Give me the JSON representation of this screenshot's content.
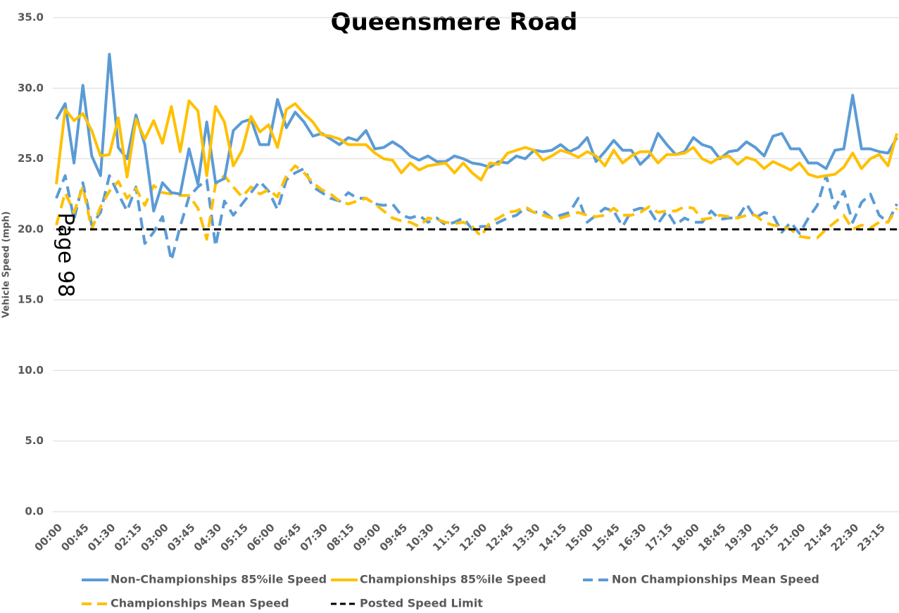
{
  "chart_data": {
    "type": "line",
    "title": "Queensmere Road",
    "y_label": "Vehicle Speed (mph)",
    "annotation": "Page 98",
    "categories": [
      "00:00",
      null,
      null,
      "00:45",
      null,
      null,
      "01:30",
      null,
      null,
      "02:15",
      null,
      null,
      "03:00",
      null,
      null,
      "03:45",
      null,
      null,
      "04:30",
      null,
      null,
      "05:15",
      null,
      null,
      "06:00",
      null,
      null,
      "06:45",
      null,
      null,
      "07:30",
      null,
      null,
      "08:15",
      null,
      null,
      "09:00",
      null,
      null,
      "09:45",
      null,
      null,
      "10:30",
      null,
      null,
      "11:15",
      null,
      null,
      "12:00",
      null,
      null,
      "12:45",
      null,
      null,
      "13:30",
      null,
      null,
      "14:15",
      null,
      null,
      "15:00",
      null,
      null,
      "15:45",
      null,
      null,
      "16:30",
      null,
      null,
      "17:15",
      null,
      null,
      "18:00",
      null,
      null,
      "18:45",
      null,
      null,
      "19:30",
      null,
      null,
      "20:15",
      null,
      null,
      "21:00",
      null,
      null,
      "21:45",
      null,
      null,
      "22:30",
      null,
      null,
      "23:15",
      null,
      null
    ],
    "series": [
      {
        "name": "Non-Championships 85%ile Speed",
        "color": "#5b9bd5",
        "dashed": false,
        "values": [
          27.8,
          28.9,
          24.7,
          30.2,
          25.2,
          23.8,
          32.4,
          25.8,
          25.0,
          28.1,
          26.0,
          21.3,
          23.3,
          22.6,
          22.5,
          25.7,
          23.2,
          27.6,
          23.3,
          23.6,
          27.0,
          27.6,
          27.8,
          26.0,
          26.0,
          29.2,
          27.2,
          28.3,
          27.6,
          26.6,
          26.8,
          26.4,
          26.0,
          26.5,
          26.3,
          27.0,
          25.7,
          25.8,
          26.2,
          25.8,
          25.2,
          24.9,
          25.2,
          24.8,
          24.8,
          25.2,
          25.0,
          24.7,
          24.6,
          24.4,
          24.8,
          24.7,
          25.2,
          25.0,
          25.6,
          25.5,
          25.6,
          26.0,
          25.5,
          25.8,
          26.5,
          24.8,
          25.5,
          26.3,
          25.6,
          25.6,
          24.6,
          25.2,
          26.8,
          26.0,
          25.3,
          25.5,
          26.5,
          26.0,
          25.8,
          25.0,
          25.5,
          25.6,
          26.2,
          25.8,
          25.2,
          26.6,
          26.8,
          25.7,
          25.7,
          24.7,
          24.7,
          24.3,
          25.6,
          25.7,
          29.5,
          25.7,
          25.7,
          25.5,
          25.4,
          26.5
        ]
      },
      {
        "name": "Championships 85%ile Speed",
        "color": "#ffc000",
        "dashed": false,
        "values": [
          23.2,
          28.5,
          27.7,
          28.2,
          27.0,
          25.2,
          25.3,
          27.9,
          23.7,
          27.8,
          26.4,
          27.7,
          26.1,
          28.7,
          25.5,
          29.1,
          28.4,
          23.8,
          28.7,
          27.6,
          24.5,
          25.6,
          28.0,
          26.9,
          27.4,
          25.8,
          28.5,
          28.9,
          28.2,
          27.6,
          26.7,
          26.6,
          26.4,
          26.0,
          26.0,
          26.0,
          25.4,
          25.0,
          24.9,
          24.0,
          24.7,
          24.2,
          24.5,
          24.6,
          24.7,
          24.0,
          24.7,
          24.0,
          23.5,
          24.7,
          24.6,
          25.4,
          25.6,
          25.8,
          25.6,
          24.9,
          25.2,
          25.6,
          25.4,
          25.1,
          25.5,
          25.2,
          24.5,
          25.6,
          24.7,
          25.2,
          25.5,
          25.5,
          24.7,
          25.3,
          25.3,
          25.4,
          25.8,
          25.0,
          24.7,
          25.1,
          25.2,
          24.6,
          25.1,
          24.9,
          24.3,
          24.8,
          24.5,
          24.2,
          24.7,
          23.9,
          23.7,
          23.8,
          23.9,
          24.4,
          25.4,
          24.3,
          25.0,
          25.3,
          24.5,
          26.8
        ]
      },
      {
        "name": "Non Championships Mean Speed",
        "color": "#5b9bd5",
        "dashed": true,
        "values": [
          22.2,
          23.8,
          20.7,
          23.3,
          20.3,
          21.2,
          23.8,
          22.5,
          21.3,
          23.0,
          19.0,
          19.8,
          20.9,
          17.8,
          20.2,
          22.3,
          23.0,
          23.5,
          18.8,
          22.0,
          21.0,
          21.8,
          22.6,
          23.4,
          22.7,
          21.4,
          23.5,
          24.0,
          24.3,
          23.0,
          22.6,
          22.2,
          22.0,
          22.6,
          22.2,
          22.2,
          21.8,
          21.7,
          21.8,
          21.0,
          20.8,
          21.0,
          20.5,
          20.8,
          20.3,
          20.5,
          20.8,
          20.0,
          20.2,
          20.2,
          20.5,
          20.8,
          21.0,
          21.5,
          21.2,
          21.3,
          20.8,
          21.0,
          21.2,
          22.2,
          20.5,
          21.0,
          21.5,
          21.3,
          20.2,
          21.3,
          21.5,
          21.4,
          20.4,
          21.3,
          20.3,
          20.8,
          20.5,
          20.5,
          21.3,
          20.7,
          20.8,
          20.8,
          21.8,
          20.8,
          21.2,
          21.0,
          19.8,
          20.5,
          19.7,
          20.8,
          21.7,
          23.8,
          21.5,
          22.7,
          20.5,
          21.9,
          22.5,
          21.0,
          20.5,
          21.8
        ]
      },
      {
        "name": "Championships Mean Speed",
        "color": "#ffc000",
        "dashed": true,
        "values": [
          20.3,
          22.6,
          21.2,
          23.0,
          20.0,
          21.6,
          22.7,
          23.4,
          22.2,
          22.9,
          21.7,
          23.1,
          22.6,
          22.5,
          22.4,
          22.4,
          21.5,
          19.3,
          23.2,
          23.8,
          23.0,
          22.3,
          23.0,
          22.5,
          22.8,
          22.3,
          23.8,
          24.5,
          24.0,
          23.3,
          22.8,
          22.5,
          22.0,
          21.8,
          22.0,
          22.2,
          21.8,
          21.3,
          20.8,
          20.6,
          20.5,
          20.2,
          20.8,
          20.7,
          20.5,
          20.4,
          20.5,
          20.2,
          19.5,
          20.5,
          20.8,
          21.2,
          21.3,
          21.6,
          21.2,
          21.0,
          20.8,
          20.8,
          21.0,
          21.2,
          21.0,
          20.9,
          21.0,
          21.5,
          21.0,
          21.0,
          21.2,
          21.6,
          21.2,
          21.3,
          21.3,
          21.6,
          21.5,
          20.7,
          20.8,
          21.0,
          20.9,
          20.8,
          21.0,
          21.0,
          20.5,
          20.3,
          20.2,
          20.0,
          19.5,
          19.4,
          19.4,
          20.0,
          20.5,
          21.0,
          20.0,
          20.3,
          20.1,
          20.5,
          20.5,
          21.5
        ]
      },
      {
        "name": "Posted Speed Limit",
        "color": "#000000",
        "dashed": true,
        "values": [
          20,
          20,
          20,
          20,
          20,
          20,
          20,
          20,
          20,
          20,
          20,
          20,
          20,
          20,
          20,
          20,
          20,
          20,
          20,
          20,
          20,
          20,
          20,
          20,
          20,
          20,
          20,
          20,
          20,
          20,
          20,
          20,
          20,
          20,
          20,
          20,
          20,
          20,
          20,
          20,
          20,
          20,
          20,
          20,
          20,
          20,
          20,
          20,
          20,
          20,
          20,
          20,
          20,
          20,
          20,
          20,
          20,
          20,
          20,
          20,
          20,
          20,
          20,
          20,
          20,
          20,
          20,
          20,
          20,
          20,
          20,
          20,
          20,
          20,
          20,
          20,
          20,
          20,
          20,
          20,
          20,
          20,
          20,
          20,
          20,
          20,
          20,
          20,
          20,
          20,
          20,
          20,
          20,
          20,
          20,
          20
        ]
      }
    ],
    "ylim": [
      0,
      35
    ],
    "yticks": [
      {
        "value": 0,
        "label": "0.0"
      },
      {
        "value": 5,
        "label": "5.0"
      },
      {
        "value": 10,
        "label": "10.0"
      },
      {
        "value": 15,
        "label": "15.0"
      },
      {
        "value": 20,
        "label": "20.0"
      },
      {
        "value": 25,
        "label": "25.0"
      },
      {
        "value": 30,
        "label": "30.0"
      },
      {
        "value": 35,
        "label": "35.0"
      }
    ],
    "grid": true,
    "legend": "bottom"
  }
}
